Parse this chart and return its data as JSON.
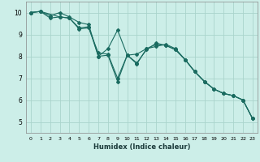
{
  "title": "",
  "xlabel": "Humidex (Indice chaleur)",
  "ylabel": "",
  "background_color": "#cceee8",
  "grid_color": "#aad4cc",
  "line_color": "#1a6b60",
  "xlim": [
    -0.5,
    23.5
  ],
  "ylim": [
    4.5,
    10.5
  ],
  "x_ticks": [
    0,
    1,
    2,
    3,
    4,
    5,
    6,
    7,
    8,
    9,
    10,
    11,
    12,
    13,
    14,
    15,
    16,
    17,
    18,
    19,
    20,
    21,
    22,
    23
  ],
  "y_ticks": [
    5,
    6,
    7,
    8,
    9,
    10
  ],
  "line1_x": [
    0,
    1,
    2,
    3,
    4,
    5,
    6,
    7,
    8,
    9,
    10,
    11,
    12,
    13,
    14,
    15,
    16,
    17,
    18,
    19,
    20,
    21,
    22,
    23
  ],
  "line1_y": [
    10.0,
    10.05,
    9.85,
    10.0,
    9.8,
    9.55,
    9.45,
    8.0,
    8.05,
    6.85,
    8.05,
    8.1,
    8.35,
    8.45,
    8.55,
    8.35,
    7.85,
    7.3,
    6.85,
    6.5,
    6.3,
    6.2,
    6.0,
    5.15
  ],
  "line2_x": [
    0,
    1,
    2,
    3,
    4,
    5,
    6,
    7,
    8,
    9,
    10,
    11,
    12,
    13,
    14,
    15,
    16,
    17,
    18,
    19,
    20,
    21,
    22,
    23
  ],
  "line2_y": [
    10.0,
    10.05,
    9.75,
    9.8,
    9.75,
    9.3,
    9.35,
    8.0,
    8.35,
    9.2,
    8.05,
    7.7,
    8.3,
    8.6,
    8.5,
    8.3,
    7.85,
    7.3,
    6.85,
    6.5,
    6.3,
    6.2,
    6.0,
    5.15
  ],
  "line3_x": [
    0,
    1,
    3,
    4,
    5,
    6,
    7,
    8,
    9,
    10,
    11,
    12,
    13,
    14,
    15,
    16,
    17,
    18,
    19,
    20,
    21,
    22,
    23
  ],
  "line3_y": [
    10.0,
    10.05,
    9.8,
    9.75,
    9.25,
    9.3,
    8.15,
    8.1,
    7.0,
    8.05,
    7.65,
    8.35,
    8.55,
    8.5,
    8.3,
    7.85,
    7.3,
    6.85,
    6.5,
    6.3,
    6.2,
    6.0,
    5.15
  ]
}
